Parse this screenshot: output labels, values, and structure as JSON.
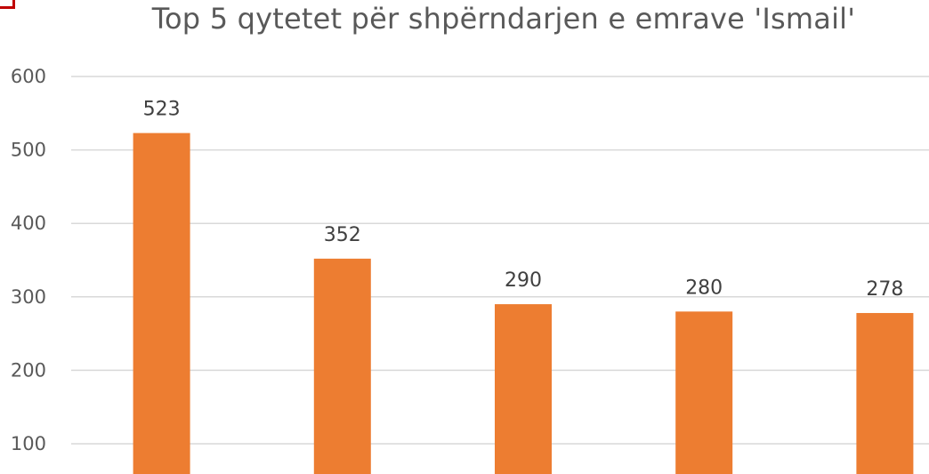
{
  "chart_data": {
    "type": "bar",
    "title": "Top 5 qytetet për shpërndarjen e emrave 'Ismail'",
    "categories": [
      "",
      "",
      "",
      "",
      ""
    ],
    "values": [
      523,
      352,
      290,
      280,
      278
    ],
    "data_labels": [
      "523",
      "352",
      "290",
      "280",
      "278"
    ],
    "y_ticks": [
      100,
      200,
      300,
      400,
      500,
      600
    ],
    "ylim": [
      0,
      600
    ],
    "grid": true,
    "legend": "none",
    "bar_color": "#ED7D31",
    "grid_color": "#D9D9D9"
  }
}
